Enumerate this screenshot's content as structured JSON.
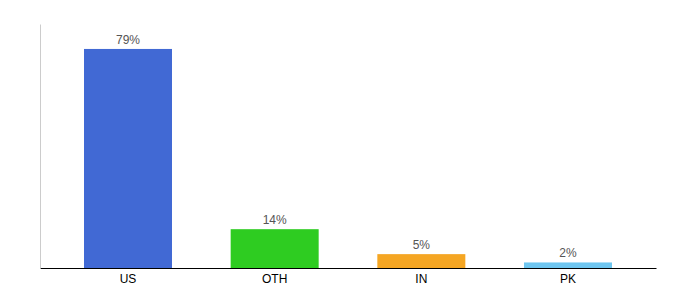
{
  "chart_data": {
    "type": "bar",
    "categories": [
      "US",
      "OTH",
      "IN",
      "PK"
    ],
    "values": [
      79,
      14,
      5,
      2
    ],
    "value_labels": [
      "79%",
      "14%",
      "5%",
      "2%"
    ],
    "colors": [
      "#4169d4",
      "#2ecc21",
      "#f5a623",
      "#6ec6f0"
    ],
    "ylim": [
      0,
      88
    ],
    "data_labels": true,
    "tick_labels": "x",
    "grid": false
  }
}
